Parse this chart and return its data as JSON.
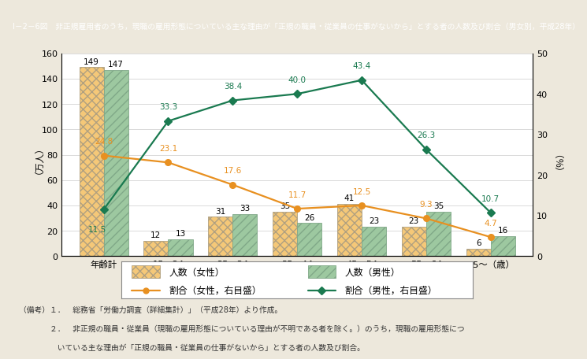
{
  "title": "I－2－6図　非正規雇用者のうち，現職の雇用形態についている主な理由が「正規の職員・従業員の仕事がないから」とする者の人数及び割合（男女別，平成28年）",
  "categories": [
    "年齢計",
    "15～24\n（うち卒業）",
    "25～34",
    "35～44",
    "45～54",
    "55～64",
    "65～（歳）"
  ],
  "female_values": [
    149,
    12,
    31,
    35,
    41,
    23,
    6
  ],
  "male_values": [
    147,
    13,
    33,
    26,
    23,
    35,
    16
  ],
  "female_ratio": [
    24.8,
    23.1,
    17.6,
    11.7,
    12.5,
    9.3,
    4.7
  ],
  "male_ratio": [
    11.5,
    33.3,
    38.4,
    40.0,
    43.4,
    26.3,
    10.7
  ],
  "ylabel_left": "（万人）",
  "ylabel_right": "（％）",
  "ylim_left": [
    0,
    160
  ],
  "ylim_right": [
    0,
    50
  ],
  "yticks_left": [
    0,
    20,
    40,
    60,
    80,
    100,
    120,
    140,
    160
  ],
  "yticks_right": [
    0,
    10,
    20,
    30,
    40,
    50
  ],
  "female_bar_color": "#F5C878",
  "female_bar_hatch": "xxx",
  "male_bar_color": "#9DC8A0",
  "male_bar_hatch": "///",
  "female_line_color": "#E89020",
  "male_line_color": "#1A7A50",
  "bg_color": "#EDE8DC",
  "plot_bg_color": "#FFFFFF",
  "title_bg_color": "#20B8C8",
  "title_text_color": "#FFFFFF",
  "bar_width": 0.38,
  "legend_female_bar": "人数（女性）",
  "legend_male_bar": "人数（男性）",
  "legend_female_line": "割合（女性，右目盛）",
  "legend_male_line": "割合（男性，右目盛）",
  "note1": "（備考）１．　総務省「労働力調査（詳細集計）」（平成28年）より作成。",
  "note2": "　　　　２．　非正規の職員・従業員（現職の雇用形態についている理由が不明である者を除く。）のうち，現職の雇用形態につ",
  "note3": "　　　　　いている主な理由が「正規の職員・従業員の仕事がないから」とする者の人数及び割合。"
}
